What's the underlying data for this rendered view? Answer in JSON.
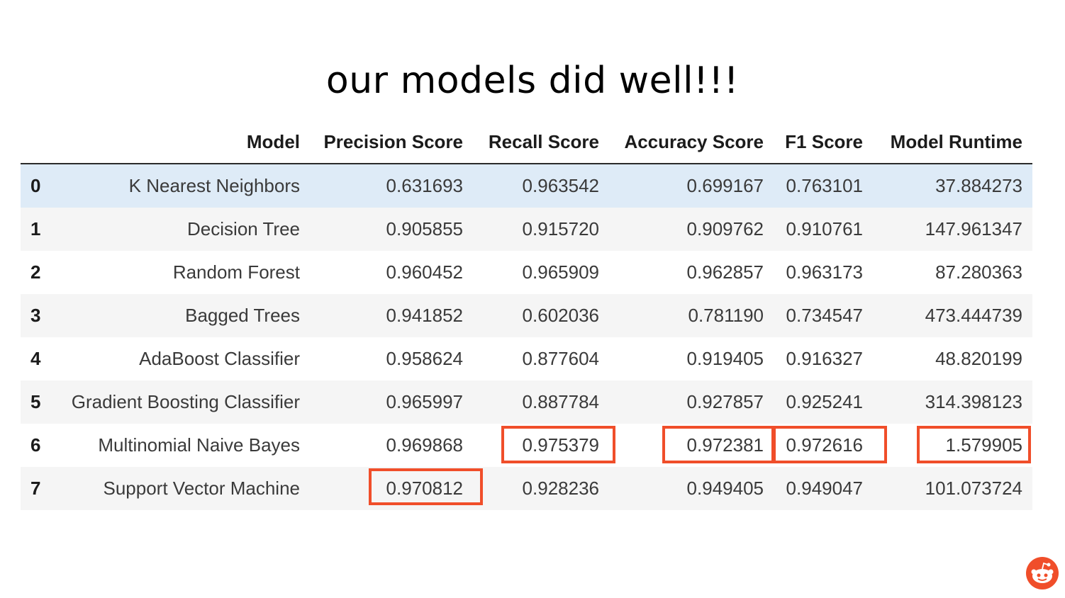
{
  "title": "our models did well!!!",
  "table": {
    "columns": [
      "",
      "Model",
      "Precision Score",
      "Recall Score",
      "Accuracy Score",
      "F1 Score",
      "Model Runtime"
    ],
    "rows": [
      {
        "index": "0",
        "model": "K Nearest Neighbors",
        "precision": "0.631693",
        "recall": "0.963542",
        "accuracy": "0.699167",
        "f1": "0.763101",
        "runtime": "37.884273"
      },
      {
        "index": "1",
        "model": "Decision Tree",
        "precision": "0.905855",
        "recall": "0.915720",
        "accuracy": "0.909762",
        "f1": "0.910761",
        "runtime": "147.961347"
      },
      {
        "index": "2",
        "model": "Random Forest",
        "precision": "0.960452",
        "recall": "0.965909",
        "accuracy": "0.962857",
        "f1": "0.963173",
        "runtime": "87.280363"
      },
      {
        "index": "3",
        "model": "Bagged Trees",
        "precision": "0.941852",
        "recall": "0.602036",
        "accuracy": "0.781190",
        "f1": "0.734547",
        "runtime": "473.444739"
      },
      {
        "index": "4",
        "model": "AdaBoost Classifier",
        "precision": "0.958624",
        "recall": "0.877604",
        "accuracy": "0.919405",
        "f1": "0.916327",
        "runtime": "48.820199"
      },
      {
        "index": "5",
        "model": "Gradient Boosting Classifier",
        "precision": "0.965997",
        "recall": "0.887784",
        "accuracy": "0.927857",
        "f1": "0.925241",
        "runtime": "314.398123"
      },
      {
        "index": "6",
        "model": "Multinomial Naive Bayes",
        "precision": "0.969868",
        "recall": "0.975379",
        "accuracy": "0.972381",
        "f1": "0.972616",
        "runtime": "1.579905"
      },
      {
        "index": "7",
        "model": "Support Vector Machine",
        "precision": "0.970812",
        "recall": "0.928236",
        "accuracy": "0.949405",
        "f1": "0.949047",
        "runtime": "101.073724"
      }
    ],
    "highlighted_best": [
      {
        "row": "7",
        "column": "Precision Score"
      },
      {
        "row": "6",
        "column": "Recall Score"
      },
      {
        "row": "6",
        "column": "Accuracy Score"
      },
      {
        "row": "6",
        "column": "F1 Score"
      },
      {
        "row": "6",
        "column": "Model Runtime"
      }
    ]
  },
  "colors": {
    "highlight_box": "#f04e2a",
    "hover_row": "#deebf7",
    "striped_row": "#f5f5f5"
  },
  "icons": {
    "corner_logo": "reddit-snoo-icon"
  }
}
